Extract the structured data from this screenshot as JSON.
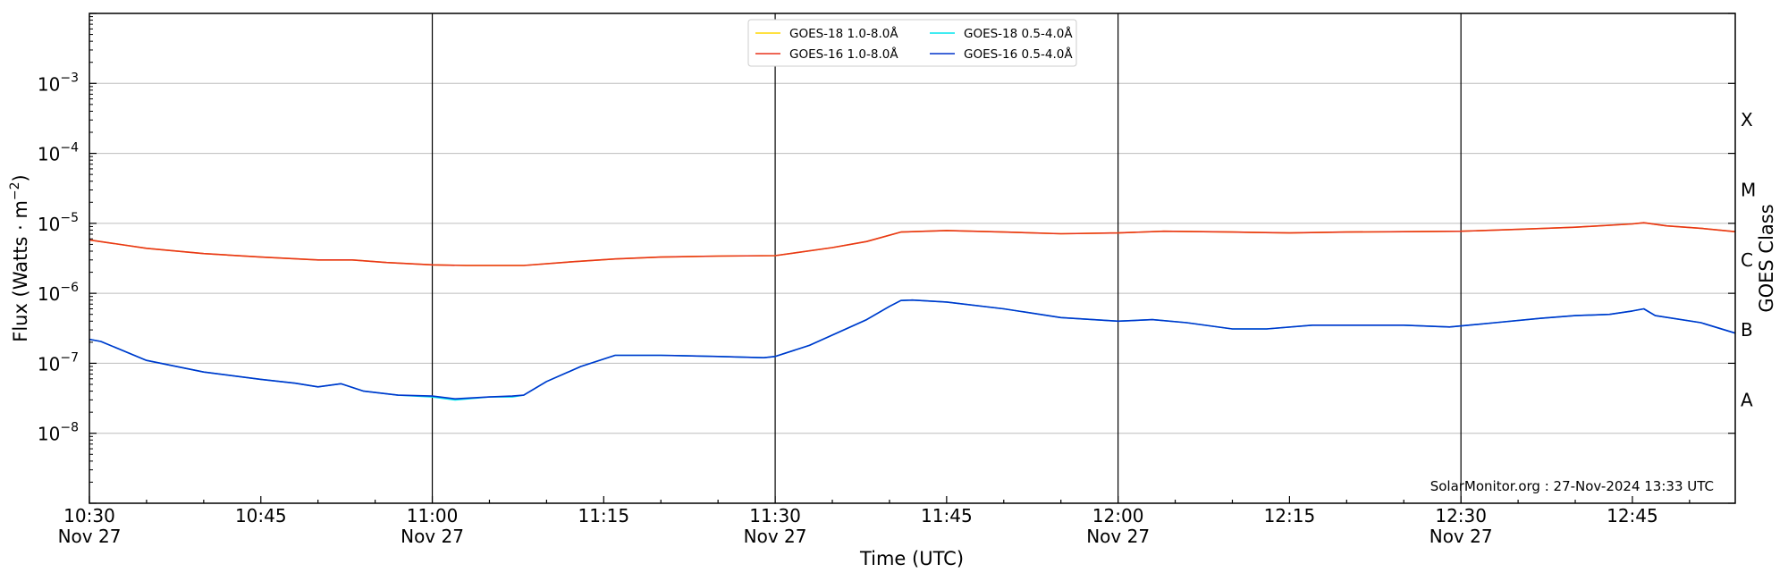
{
  "chart_data": {
    "type": "line",
    "xlabel": "Time (UTC)",
    "ylabel_main": "Flux (Watts · m",
    "ylabel_exp": "−2",
    "ylabel_close": ")",
    "y2label": "GOES Class",
    "y_scale": "log",
    "ylim": [
      1e-09,
      0.01
    ],
    "xlim": [
      "10:30",
      "12:54"
    ],
    "grid": "horizontal at decades",
    "legend_placement": "top-center",
    "credit": "SolarMonitor.org : 27-Nov-2024 13:33 UTC",
    "x_ticks": [
      {
        "t": "10:30",
        "label": "10:30",
        "sub": "Nov 27"
      },
      {
        "t": "10:45",
        "label": "10:45",
        "sub": ""
      },
      {
        "t": "11:00",
        "label": "11:00",
        "sub": "Nov 27"
      },
      {
        "t": "11:15",
        "label": "11:15",
        "sub": ""
      },
      {
        "t": "11:30",
        "label": "11:30",
        "sub": "Nov 27"
      },
      {
        "t": "11:45",
        "label": "11:45",
        "sub": ""
      },
      {
        "t": "12:00",
        "label": "12:00",
        "sub": "Nov 27"
      },
      {
        "t": "12:15",
        "label": "12:15",
        "sub": ""
      },
      {
        "t": "12:30",
        "label": "12:30",
        "sub": "Nov 27"
      },
      {
        "t": "12:45",
        "label": "12:45",
        "sub": ""
      }
    ],
    "vlines": [
      "11:00",
      "11:30",
      "12:00",
      "12:30"
    ],
    "y_ticks": [
      {
        "exp": -8,
        "label": "10",
        "sup": "−8"
      },
      {
        "exp": -7,
        "label": "10",
        "sup": "−7"
      },
      {
        "exp": -6,
        "label": "10",
        "sup": "−6"
      },
      {
        "exp": -5,
        "label": "10",
        "sup": "−5"
      },
      {
        "exp": -4,
        "label": "10",
        "sup": "−4"
      },
      {
        "exp": -3,
        "label": "10",
        "sup": "−3"
      }
    ],
    "goes_classes": [
      {
        "label": "A",
        "flux": 3e-08
      },
      {
        "label": "B",
        "flux": 3e-07
      },
      {
        "label": "C",
        "flux": 3e-06
      },
      {
        "label": "M",
        "flux": 3e-05
      },
      {
        "label": "X",
        "flux": 0.0003
      }
    ],
    "series": [
      {
        "name": "GOES-18 1.0-8.0Å",
        "color": "#ffd700",
        "x": [
          "10:30",
          "10:35",
          "10:40",
          "10:45",
          "10:50",
          "10:53",
          "10:56",
          "11:00",
          "11:03",
          "11:08",
          "11:12",
          "11:16",
          "11:20",
          "11:25",
          "11:30",
          "11:35",
          "11:38",
          "11:41",
          "11:45",
          "11:50",
          "11:55",
          "12:00",
          "12:04",
          "12:10",
          "12:15",
          "12:20",
          "12:25",
          "12:30",
          "12:35",
          "12:40",
          "12:45",
          "12:46",
          "12:48",
          "12:51",
          "12:54"
        ],
        "values": [
          5.8e-06,
          4.4e-06,
          3.7e-06,
          3.3e-06,
          3e-06,
          3e-06,
          2.75e-06,
          2.55e-06,
          2.5e-06,
          2.5e-06,
          2.8e-06,
          3.1e-06,
          3.3e-06,
          3.4e-06,
          3.45e-06,
          4.5e-06,
          5.5e-06,
          7.5e-06,
          7.9e-06,
          7.5e-06,
          7.1e-06,
          7.3e-06,
          7.7e-06,
          7.5e-06,
          7.3e-06,
          7.5e-06,
          7.6e-06,
          7.7e-06,
          8.2e-06,
          8.8e-06,
          9.8e-06,
          1.02e-05,
          9.2e-06,
          8.5e-06,
          7.6e-06
        ]
      },
      {
        "name": "GOES-16 1.0-8.0Å",
        "color": "#e8341c",
        "x": [
          "10:30",
          "10:35",
          "10:40",
          "10:45",
          "10:50",
          "10:53",
          "10:56",
          "11:00",
          "11:03",
          "11:08",
          "11:12",
          "11:16",
          "11:20",
          "11:25",
          "11:30",
          "11:35",
          "11:38",
          "11:41",
          "11:45",
          "11:50",
          "11:55",
          "12:00",
          "12:04",
          "12:10",
          "12:15",
          "12:20",
          "12:25",
          "12:30",
          "12:35",
          "12:40",
          "12:45",
          "12:46",
          "12:48",
          "12:51",
          "12:54"
        ],
        "values": [
          5.8e-06,
          4.4e-06,
          3.7e-06,
          3.3e-06,
          3e-06,
          3e-06,
          2.75e-06,
          2.55e-06,
          2.5e-06,
          2.5e-06,
          2.8e-06,
          3.1e-06,
          3.3e-06,
          3.4e-06,
          3.45e-06,
          4.5e-06,
          5.5e-06,
          7.5e-06,
          7.9e-06,
          7.5e-06,
          7.1e-06,
          7.3e-06,
          7.7e-06,
          7.5e-06,
          7.3e-06,
          7.5e-06,
          7.6e-06,
          7.7e-06,
          8.2e-06,
          8.8e-06,
          9.8e-06,
          1.02e-05,
          9.2e-06,
          8.5e-06,
          7.6e-06
        ]
      },
      {
        "name": "GOES-18 0.5-4.0Å",
        "color": "#00e5ee",
        "x": [
          "10:30",
          "10:31",
          "10:35",
          "10:40",
          "10:45",
          "10:48",
          "10:50",
          "10:52",
          "10:54",
          "10:57",
          "11:00",
          "11:02",
          "11:05",
          "11:07",
          "11:08",
          "11:10",
          "11:13",
          "11:16",
          "11:20",
          "11:25",
          "11:29",
          "11:30",
          "11:33",
          "11:36",
          "11:38",
          "11:40",
          "11:41",
          "11:42",
          "11:45",
          "11:50",
          "11:55",
          "12:00",
          "12:03",
          "12:06",
          "12:10",
          "12:13",
          "12:17",
          "12:20",
          "12:25",
          "12:29",
          "12:33",
          "12:37",
          "12:40",
          "12:43",
          "12:45",
          "12:46",
          "12:47",
          "12:51",
          "12:54"
        ],
        "values": [
          2.2e-07,
          2.05e-07,
          1.1e-07,
          7.5e-08,
          5.9e-08,
          5.2e-08,
          4.6e-08,
          5.1e-08,
          4e-08,
          3.5e-08,
          3.3e-08,
          3e-08,
          3.3e-08,
          3.3e-08,
          3.5e-08,
          5.5e-08,
          9e-08,
          1.3e-07,
          1.3e-07,
          1.25e-07,
          1.2e-07,
          1.25e-07,
          1.8e-07,
          3e-07,
          4.2e-07,
          6.5e-07,
          7.9e-07,
          8e-07,
          7.5e-07,
          6e-07,
          4.5e-07,
          4e-07,
          4.2e-07,
          3.8e-07,
          3.1e-07,
          3.1e-07,
          3.5e-07,
          3.5e-07,
          3.5e-07,
          3.3e-07,
          3.8e-07,
          4.4e-07,
          4.8e-07,
          5e-07,
          5.6e-07,
          6e-07,
          4.8e-07,
          3.8e-07,
          2.7e-07
        ]
      },
      {
        "name": "GOES-16 0.5-4.0Å",
        "color": "#0033cc",
        "x": [
          "10:30",
          "10:31",
          "10:35",
          "10:40",
          "10:45",
          "10:48",
          "10:50",
          "10:52",
          "10:54",
          "10:57",
          "11:00",
          "11:02",
          "11:05",
          "11:07",
          "11:08",
          "11:10",
          "11:13",
          "11:16",
          "11:20",
          "11:25",
          "11:29",
          "11:30",
          "11:33",
          "11:36",
          "11:38",
          "11:40",
          "11:41",
          "11:42",
          "11:45",
          "11:50",
          "11:55",
          "12:00",
          "12:03",
          "12:06",
          "12:10",
          "12:13",
          "12:17",
          "12:20",
          "12:25",
          "12:29",
          "12:33",
          "12:37",
          "12:40",
          "12:43",
          "12:45",
          "12:46",
          "12:47",
          "12:51",
          "12:54"
        ],
        "values": [
          2.2e-07,
          2.05e-07,
          1.1e-07,
          7.5e-08,
          5.9e-08,
          5.2e-08,
          4.6e-08,
          5.1e-08,
          4e-08,
          3.5e-08,
          3.4e-08,
          3.1e-08,
          3.3e-08,
          3.4e-08,
          3.5e-08,
          5.5e-08,
          9e-08,
          1.3e-07,
          1.3e-07,
          1.25e-07,
          1.2e-07,
          1.25e-07,
          1.8e-07,
          3e-07,
          4.2e-07,
          6.5e-07,
          7.9e-07,
          8e-07,
          7.5e-07,
          6e-07,
          4.5e-07,
          4e-07,
          4.2e-07,
          3.8e-07,
          3.1e-07,
          3.1e-07,
          3.5e-07,
          3.5e-07,
          3.5e-07,
          3.3e-07,
          3.8e-07,
          4.4e-07,
          4.8e-07,
          5e-07,
          5.6e-07,
          6e-07,
          4.8e-07,
          3.8e-07,
          2.7e-07
        ]
      }
    ],
    "legend_order": [
      0,
      2,
      1,
      3
    ]
  }
}
